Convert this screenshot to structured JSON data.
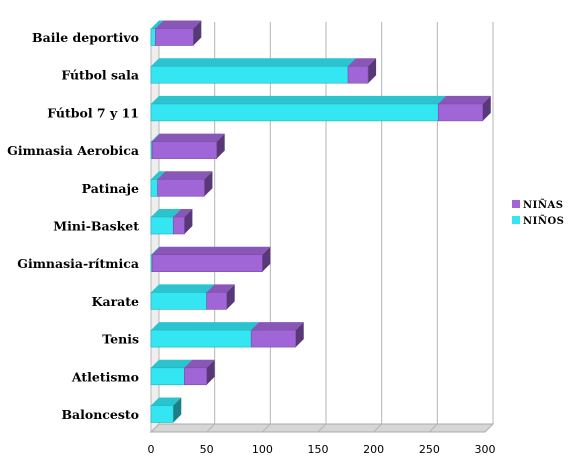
{
  "chart_data": {
    "type": "bar",
    "orientation": "horizontal",
    "stacked": true,
    "three_d": true,
    "categories": [
      "Baile deportivo",
      "Fútbol sala",
      "Fútbol 7 y 11",
      "Gimnasia Aerobica",
      "Patinaje",
      "Mini-Basket",
      "Gimnasia-rítmica",
      "Karate",
      "Tenis",
      "Atletismo",
      "Baloncesto"
    ],
    "series": [
      {
        "name": "NIÑOS",
        "color": "#33e6f2",
        "values": [
          4,
          177,
          258,
          1,
          6,
          20,
          1,
          50,
          90,
          30,
          20
        ]
      },
      {
        "name": "NIÑAS",
        "color": "#a066d8",
        "values": [
          34,
          18,
          40,
          58,
          42,
          10,
          99,
          18,
          40,
          20,
          0
        ]
      }
    ],
    "xlim": [
      0,
      300
    ],
    "xticks": [
      0,
      50,
      100,
      150,
      200,
      250,
      300
    ],
    "grid": true,
    "legend_position": "right"
  }
}
